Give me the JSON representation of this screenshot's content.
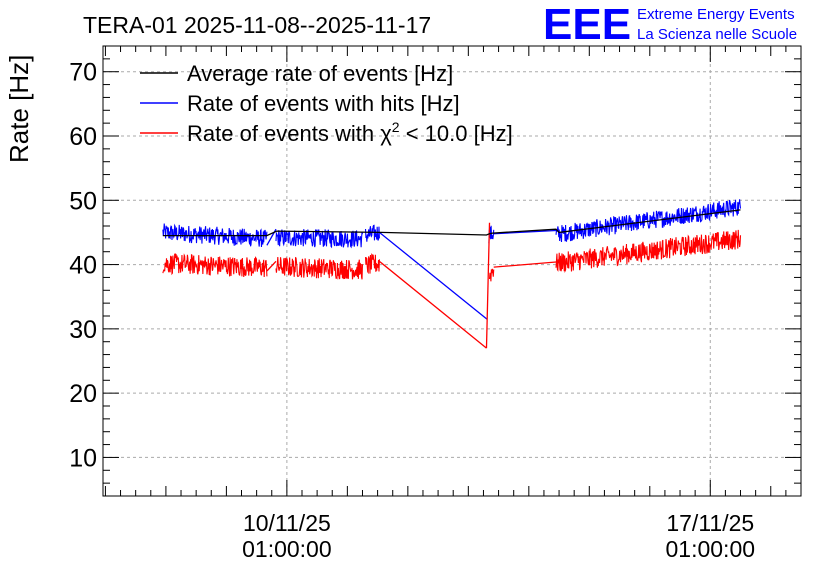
{
  "chart_data": {
    "type": "line",
    "title": "TERA-01 2025-11-08--2025-11-17",
    "ylabel": "Rate [Hz]",
    "ylim": [
      4,
      74
    ],
    "yticks": [
      10,
      20,
      30,
      40,
      50,
      60,
      70
    ],
    "xlim_days": [
      -3.04,
      8.5
    ],
    "xticks": [
      {
        "day": 0,
        "line1": "10/11/25",
        "line2": "01:00:00"
      },
      {
        "day": 7,
        "line1": "17/11/25",
        "line2": "01:00:00"
      }
    ],
    "legend": [
      {
        "label": "Average rate of events [Hz]",
        "color": "#000000"
      },
      {
        "label": "Rate of events with hits [Hz]",
        "color": "#0000ff"
      },
      {
        "label_prefix": "Rate of events with ",
        "chi": "χ",
        "sup": "2",
        "label_suffix": " < 10.0 [Hz]",
        "color": "#ff0000"
      }
    ],
    "series": [
      {
        "name": "Average rate of events [Hz]",
        "color": "#000000",
        "noise": 0,
        "points": [
          [
            -2.05,
            44.5
          ],
          [
            -0.33,
            44.5
          ],
          [
            -0.17,
            45.2
          ],
          [
            1.55,
            45.0
          ],
          [
            3.3,
            44.6
          ],
          [
            3.35,
            44.8
          ],
          [
            3.4,
            44.9
          ],
          [
            4.45,
            45.5
          ],
          [
            4.5,
            45.0
          ],
          [
            7.5,
            48.5
          ]
        ]
      },
      {
        "name": "Rate of events with hits [Hz]",
        "color": "#0000ff",
        "noise": 1.4,
        "segments": [
          [
            [
              -2.05,
              45.0
            ],
            [
              -0.33,
              44.0
            ]
          ],
          [
            [
              -0.18,
              44.2
            ],
            [
              1.25,
              44.0
            ]
          ],
          [
            [
              1.3,
              44.5
            ],
            [
              1.53,
              45.0
            ]
          ],
          [
            [
              3.34,
              44.7
            ],
            [
              3.42,
              44.8
            ]
          ],
          [
            [
              4.45,
              44.7
            ],
            [
              7.5,
              49.0
            ]
          ]
        ],
        "connectors": [
          [
            [
              -0.33,
              43.0
            ],
            [
              -0.18,
              45.5
            ]
          ],
          [
            [
              1.53,
              45.0
            ],
            [
              3.31,
              31.5
            ]
          ],
          [
            [
              3.42,
              44.8
            ],
            [
              4.45,
              45.3
            ]
          ]
        ]
      },
      {
        "name": "Rate of events with χ² < 10.0 [Hz]",
        "color": "#ff0000",
        "noise": 1.6,
        "segments": [
          [
            [
              -2.05,
              40.2
            ],
            [
              -0.33,
              39.5
            ]
          ],
          [
            [
              -0.18,
              39.7
            ],
            [
              1.25,
              39.2
            ]
          ],
          [
            [
              1.3,
              39.8
            ],
            [
              1.53,
              40.2
            ]
          ],
          [
            [
              3.35,
              38.3
            ],
            [
              3.42,
              39.5
            ]
          ],
          [
            [
              4.45,
              40.2
            ],
            [
              7.5,
              44.0
            ]
          ]
        ],
        "connectors": [
          [
            [
              -0.33,
              39.0
            ],
            [
              -0.18,
              40.5
            ]
          ],
          [
            [
              1.53,
              40.5
            ],
            [
              3.3,
              27.0
            ]
          ],
          [
            [
              3.3,
              27.0
            ],
            [
              3.35,
              46.5
            ]
          ],
          [
            [
              3.42,
              39.6
            ],
            [
              4.45,
              40.4
            ]
          ]
        ]
      }
    ]
  },
  "logo": {
    "text": "EEE",
    "line1": "Extreme Energy Events",
    "line2": "La Scienza nelle Scuole",
    "color": "#0000ff"
  }
}
